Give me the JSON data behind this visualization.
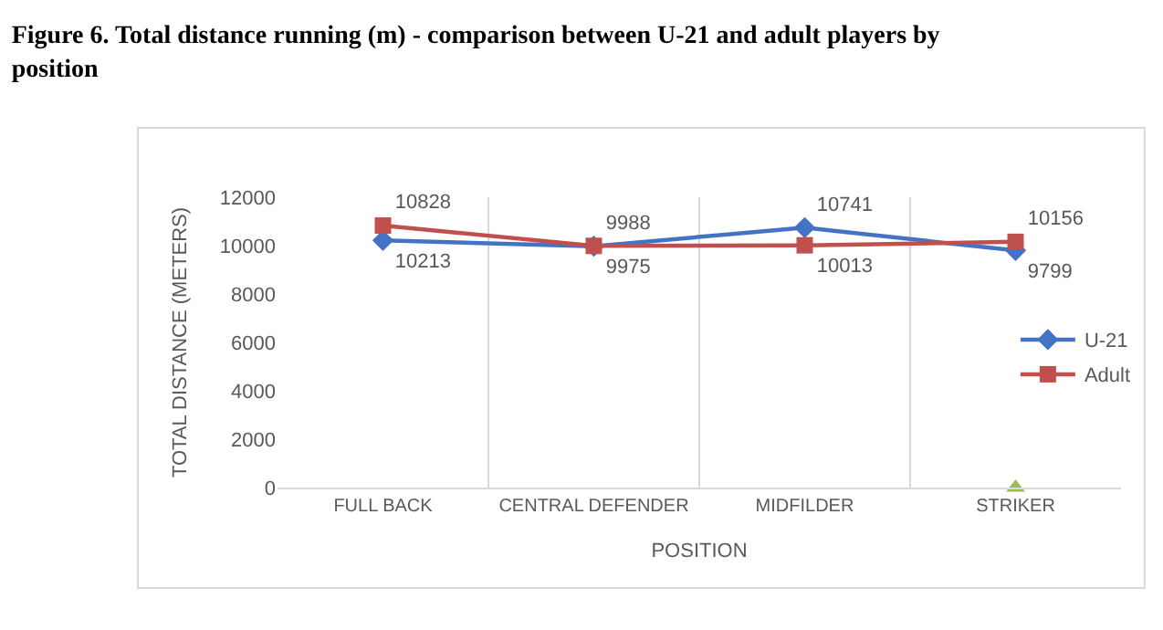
{
  "chart_data": {
    "type": "line",
    "title": "Figure 6. Total distance running (m) - comparison between U-21 and adult players by position",
    "xlabel": "POSITION",
    "ylabel": "TOTAL DISTANCE (METERS)",
    "categories": [
      "FULL BACK",
      "CENTRAL DEFENDER",
      "MIDFILDER",
      "STRIKER"
    ],
    "series": [
      {
        "name": "U-21",
        "color": "#4472c4",
        "marker": "diamond",
        "values": [
          10213,
          9975,
          10741,
          9799
        ],
        "value_labels": [
          "10213",
          "9975",
          "10741",
          "9799"
        ]
      },
      {
        "name": "Adult",
        "color": "#c0504d",
        "marker": "square",
        "values": [
          10828,
          9988,
          10013,
          10156
        ],
        "value_labels": [
          "10828",
          "9988",
          "10013",
          "10156"
        ]
      },
      {
        "type": "scatter",
        "color": "#9bbb59",
        "marker": "triangle",
        "values": [
          null,
          null,
          null,
          0
        ]
      }
    ],
    "ylim": [
      0,
      12000
    ],
    "yticks": [
      0,
      2000,
      4000,
      6000,
      8000,
      10000,
      12000
    ],
    "grid": "x",
    "legend": "right"
  }
}
